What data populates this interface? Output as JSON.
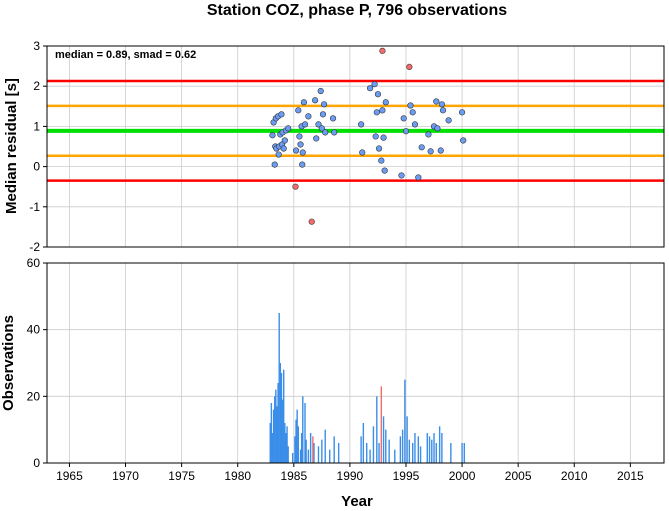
{
  "chart_data": [
    {
      "type": "scatter",
      "title": "Station COZ, phase P, 796 observations",
      "ylabel": "Median residual [s]",
      "annotation": "median = 0.89, smad = 0.62",
      "xlim": [
        1963,
        2018
      ],
      "ylim": [
        -2,
        3
      ],
      "yticks": [
        -2,
        -1,
        0,
        1,
        2,
        3
      ],
      "grid": true,
      "reference_lines": [
        {
          "y": 0.89,
          "color": "#00e000",
          "role": "median"
        },
        {
          "y": 1.51,
          "color": "#ffa500",
          "role": "plus 1 smad"
        },
        {
          "y": 0.27,
          "color": "#ffa500",
          "role": "minus 1 smad"
        },
        {
          "y": 2.13,
          "color": "#ff0000",
          "role": "plus 2 smad"
        },
        {
          "y": -0.35,
          "color": "#ff0000",
          "role": "minus 2 smad"
        }
      ],
      "series": [
        {
          "color": "#6b9cf4",
          "points": [
            [
              1983.1,
              0.78
            ],
            [
              1983.2,
              1.1
            ],
            [
              1983.3,
              0.05
            ],
            [
              1983.35,
              0.5
            ],
            [
              1983.4,
              1.2
            ],
            [
              1983.45,
              0.45
            ],
            [
              1983.6,
              1.25
            ],
            [
              1983.65,
              0.3
            ],
            [
              1983.7,
              0.5
            ],
            [
              1983.8,
              0.8
            ],
            [
              1983.9,
              1.3
            ],
            [
              1983.95,
              0.55
            ],
            [
              1984.0,
              0.85
            ],
            [
              1984.1,
              0.45
            ],
            [
              1984.2,
              0.65
            ],
            [
              1984.3,
              0.9
            ],
            [
              1984.5,
              0.95
            ],
            [
              1985.2,
              0.4
            ],
            [
              1985.4,
              1.4
            ],
            [
              1985.5,
              0.75
            ],
            [
              1985.6,
              0.55
            ],
            [
              1985.7,
              1.0
            ],
            [
              1985.75,
              0.05
            ],
            [
              1985.8,
              0.35
            ],
            [
              1985.9,
              1.6
            ],
            [
              1986.0,
              1.05
            ],
            [
              1986.3,
              1.25
            ],
            [
              1986.9,
              1.65
            ],
            [
              1987.0,
              0.7
            ],
            [
              1987.2,
              1.05
            ],
            [
              1987.4,
              1.88
            ],
            [
              1987.5,
              0.95
            ],
            [
              1987.6,
              1.3
            ],
            [
              1987.7,
              1.55
            ],
            [
              1987.8,
              0.85
            ],
            [
              1988.5,
              1.2
            ],
            [
              1988.6,
              0.85
            ],
            [
              1991.0,
              1.05
            ],
            [
              1991.1,
              0.35
            ],
            [
              1991.8,
              1.95
            ],
            [
              1992.2,
              2.05
            ],
            [
              1992.3,
              0.75
            ],
            [
              1992.4,
              1.35
            ],
            [
              1992.5,
              1.8
            ],
            [
              1992.6,
              0.45
            ],
            [
              1992.8,
              0.15
            ],
            [
              1992.9,
              1.4
            ],
            [
              1993.0,
              0.72
            ],
            [
              1993.1,
              -0.1
            ],
            [
              1993.2,
              1.6
            ],
            [
              1994.6,
              -0.22
            ],
            [
              1994.8,
              1.2
            ],
            [
              1995.0,
              0.88
            ],
            [
              1995.4,
              1.52
            ],
            [
              1995.6,
              1.35
            ],
            [
              1995.8,
              1.05
            ],
            [
              1996.1,
              -0.27
            ],
            [
              1996.4,
              0.48
            ],
            [
              1997.0,
              0.8
            ],
            [
              1997.2,
              0.38
            ],
            [
              1997.5,
              1.0
            ],
            [
              1997.7,
              1.62
            ],
            [
              1997.8,
              0.95
            ],
            [
              1998.1,
              0.4
            ],
            [
              1998.2,
              1.55
            ],
            [
              1998.3,
              1.4
            ],
            [
              1998.8,
              1.15
            ],
            [
              2000.0,
              1.35
            ],
            [
              2000.1,
              0.65
            ]
          ]
        },
        {
          "color": "#f46b6b",
          "points": [
            [
              1985.15,
              -0.5
            ],
            [
              1986.6,
              -1.37
            ],
            [
              1992.9,
              2.88
            ],
            [
              1995.3,
              2.48
            ]
          ]
        }
      ]
    },
    {
      "type": "bar",
      "xlabel": "Year",
      "ylabel": "Observations",
      "xlim": [
        1963,
        2018
      ],
      "ylim": [
        0,
        60
      ],
      "xticks": [
        1965,
        1970,
        1975,
        1980,
        1985,
        1990,
        1995,
        2000,
        2005,
        2010,
        2015
      ],
      "yticks": [
        0,
        20,
        40,
        60
      ],
      "grid": true,
      "series": [
        {
          "color": "#3a8de8",
          "points": [
            [
              1982.9,
              12
            ],
            [
              1983.0,
              18
            ],
            [
              1983.1,
              9
            ],
            [
              1983.2,
              16
            ],
            [
              1983.3,
              20
            ],
            [
              1983.4,
              22
            ],
            [
              1983.5,
              17
            ],
            [
              1983.6,
              24
            ],
            [
              1983.7,
              45
            ],
            [
              1983.8,
              30
            ],
            [
              1983.9,
              27
            ],
            [
              1984.0,
              19
            ],
            [
              1984.1,
              28
            ],
            [
              1984.2,
              12
            ],
            [
              1984.3,
              9
            ],
            [
              1984.4,
              11
            ],
            [
              1984.5,
              5
            ],
            [
              1984.9,
              3
            ],
            [
              1985.1,
              8
            ],
            [
              1985.2,
              13
            ],
            [
              1985.3,
              16
            ],
            [
              1985.4,
              11
            ],
            [
              1985.6,
              4
            ],
            [
              1985.7,
              9
            ],
            [
              1985.8,
              20
            ],
            [
              1986.0,
              18
            ],
            [
              1986.1,
              7
            ],
            [
              1986.3,
              4
            ],
            [
              1986.5,
              9
            ],
            [
              1986.8,
              6
            ],
            [
              1987.2,
              5
            ],
            [
              1987.5,
              7
            ],
            [
              1987.8,
              10
            ],
            [
              1988.2,
              4
            ],
            [
              1988.6,
              8
            ],
            [
              1989.0,
              6
            ],
            [
              1991.0,
              8
            ],
            [
              1991.2,
              12
            ],
            [
              1991.5,
              6
            ],
            [
              1991.8,
              4
            ],
            [
              1992.1,
              11
            ],
            [
              1992.4,
              20
            ],
            [
              1992.6,
              6
            ],
            [
              1993.0,
              14
            ],
            [
              1993.2,
              10
            ],
            [
              1993.5,
              7
            ],
            [
              1994.0,
              4
            ],
            [
              1994.5,
              8
            ],
            [
              1994.7,
              10
            ],
            [
              1994.9,
              25
            ],
            [
              1995.1,
              14
            ],
            [
              1995.3,
              7
            ],
            [
              1995.6,
              6
            ],
            [
              1995.8,
              9
            ],
            [
              1996.1,
              8
            ],
            [
              1996.3,
              5
            ],
            [
              1996.9,
              9
            ],
            [
              1997.1,
              8
            ],
            [
              1997.3,
              7
            ],
            [
              1997.5,
              9
            ],
            [
              1997.7,
              6
            ],
            [
              1998.0,
              11
            ],
            [
              1998.2,
              9
            ],
            [
              1999.0,
              6
            ],
            [
              2000.0,
              6
            ],
            [
              2000.2,
              6
            ]
          ]
        },
        {
          "color": "#f46b6b",
          "points": [
            [
              1986.7,
              8
            ],
            [
              1992.8,
              23
            ]
          ]
        }
      ]
    }
  ]
}
